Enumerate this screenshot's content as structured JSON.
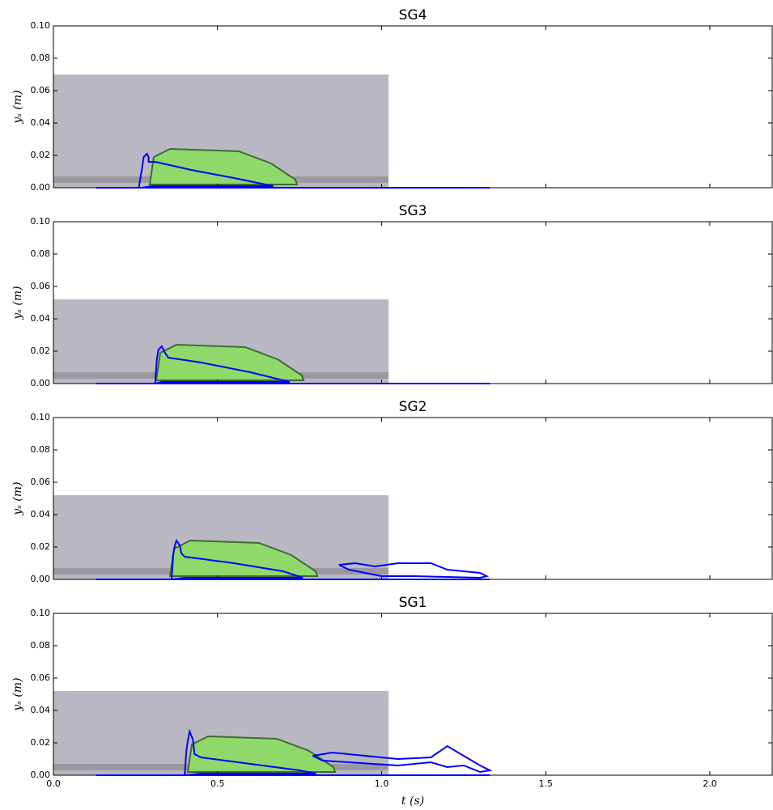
{
  "chart_data": [
    {
      "type": "line",
      "title": "SG4",
      "ylabel": "yₛ (m)",
      "xlim": [
        0,
        2.19
      ],
      "ylim": [
        0,
        0.1
      ],
      "xticks": [
        {
          "value": 0,
          "label": "0.0"
        },
        0.5,
        {
          "value": 1,
          "label": "1.0"
        },
        1.5,
        {
          "value": 2,
          "label": "2.0"
        }
      ],
      "yticks": [
        {
          "value": 0,
          "label": "0.00"
        },
        0.02,
        0.04,
        0.06,
        0.08,
        {
          "value": 0.1,
          "label": "0.10"
        }
      ],
      "series": [
        {
          "color": "#0000ff",
          "x": [
            0.13,
            1.33
          ],
          "values": [
            0,
            0
          ]
        },
        {
          "color": "#0000ff",
          "x": [
            0.26,
            0.27,
            0.275,
            0.285,
            0.29,
            0.29,
            0.31,
            0.42,
            0.55,
            0.67,
            0.3,
            0.27
          ],
          "values": [
            0,
            0.012,
            0.019,
            0.021,
            0.019,
            0.016,
            0.016,
            0.011,
            0.006,
            0.001,
            0.001,
            0
          ]
        }
      ]
    },
    {
      "type": "line",
      "title": "SG3",
      "ylabel": "yₛ (m)",
      "xlim": [
        0,
        2.19
      ],
      "ylim": [
        0,
        0.1
      ],
      "xticks": [
        {
          "value": 0,
          "label": "0.0"
        },
        0.5,
        {
          "value": 1,
          "label": "1.0"
        },
        1.5,
        {
          "value": 2,
          "label": "2.0"
        }
      ],
      "yticks": [
        {
          "value": 0,
          "label": "0.00"
        },
        0.02,
        0.04,
        0.06,
        0.08,
        {
          "value": 0.1,
          "label": "0.10"
        }
      ],
      "series": [
        {
          "color": "#0000ff",
          "x": [
            0.13,
            1.33
          ],
          "values": [
            0,
            0
          ]
        },
        {
          "color": "#0000ff",
          "x": [
            0.31,
            0.315,
            0.32,
            0.33,
            0.34,
            0.35,
            0.45,
            0.6,
            0.72,
            0.33,
            0.31
          ],
          "values": [
            0,
            0.015,
            0.021,
            0.023,
            0.019,
            0.016,
            0.013,
            0.007,
            0.001,
            0.001,
            0
          ]
        }
      ]
    },
    {
      "type": "line",
      "title": "SG2",
      "ylabel": "yₛ (m)",
      "xlim": [
        0,
        2.19
      ],
      "ylim": [
        0,
        0.1
      ],
      "xticks": [
        {
          "value": 0,
          "label": "0.0"
        },
        0.5,
        {
          "value": 1,
          "label": "1.0"
        },
        1.5,
        {
          "value": 2,
          "label": "2.0"
        }
      ],
      "yticks": [
        {
          "value": 0,
          "label": "0.00"
        },
        0.02,
        0.04,
        0.06,
        0.08,
        {
          "value": 0.1,
          "label": "0.10"
        }
      ],
      "series": [
        {
          "color": "#0000ff",
          "x": [
            0.13,
            1.33
          ],
          "values": [
            0,
            0
          ]
        },
        {
          "color": "#0000ff",
          "x": [
            0.36,
            0.365,
            0.37,
            0.375,
            0.385,
            0.39,
            0.4,
            0.55,
            0.7,
            0.76,
            0.4,
            0.36
          ],
          "values": [
            0,
            0.015,
            0.021,
            0.024,
            0.021,
            0.016,
            0.014,
            0.01,
            0.005,
            0.001,
            0.001,
            0
          ]
        },
        {
          "color": "#0000ff",
          "x": [
            0.87,
            0.92,
            0.98,
            1.05,
            1.15,
            1.2,
            1.3,
            1.32,
            1.3,
            1.1,
            1.0,
            0.95,
            0.9,
            0.87
          ],
          "values": [
            0.009,
            0.01,
            0.008,
            0.01,
            0.01,
            0.006,
            0.004,
            0.002,
            0.001,
            0.002,
            0.002,
            0.004,
            0.006,
            0.009
          ]
        }
      ]
    },
    {
      "type": "line",
      "title": "SG1",
      "ylabel": "yₛ (m)",
      "xlabel": "t (s)",
      "xlim": [
        0,
        2.19
      ],
      "ylim": [
        0,
        0.1
      ],
      "xticks": [
        {
          "value": 0,
          "label": "0.0"
        },
        0.5,
        {
          "value": 1,
          "label": "1.0"
        },
        1.5,
        {
          "value": 2,
          "label": "2.0"
        }
      ],
      "yticks": [
        {
          "value": 0,
          "label": "0.00"
        },
        0.02,
        0.04,
        0.06,
        0.08,
        {
          "value": 0.1,
          "label": "0.10"
        }
      ],
      "series": [
        {
          "color": "#0000ff",
          "x": [
            0.13,
            1.33
          ],
          "values": [
            0,
            0
          ]
        },
        {
          "color": "#0000ff",
          "x": [
            0.4,
            0.405,
            0.41,
            0.415,
            0.425,
            0.43,
            0.45,
            0.6,
            0.75,
            0.8,
            0.45,
            0.4
          ],
          "values": [
            0,
            0.015,
            0.022,
            0.027,
            0.022,
            0.013,
            0.011,
            0.007,
            0.003,
            0.001,
            0.001,
            0
          ]
        },
        {
          "color": "#0000ff",
          "x": [
            0.79,
            0.85,
            0.95,
            1.05,
            1.15,
            1.2,
            1.25,
            1.3,
            1.33,
            1.3,
            1.25,
            1.2,
            1.15,
            1.05,
            0.9,
            0.82,
            0.79
          ],
          "values": [
            0.012,
            0.014,
            0.012,
            0.01,
            0.011,
            0.018,
            0.012,
            0.006,
            0.003,
            0.002,
            0.006,
            0.005,
            0.008,
            0.006,
            0.008,
            0.009,
            0.012
          ]
        }
      ]
    }
  ]
}
